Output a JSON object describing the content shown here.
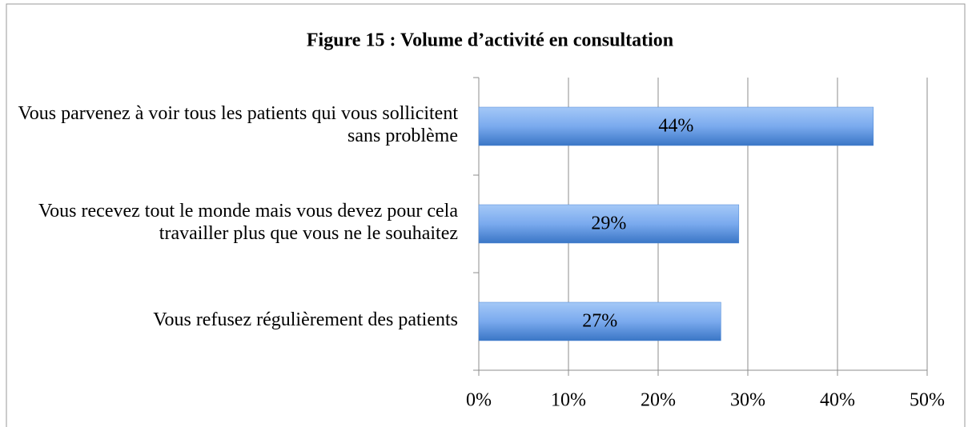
{
  "chart_data": {
    "type": "hbar",
    "title": "Figure 15 : Volume d’activité en consultation",
    "categories": [
      "Vous parvenez à voir tous les patients qui vous sollicitent sans problème",
      "Vous recevez tout le monde mais vous devez pour cela travailler plus que vous ne le souhaitez",
      "Vous refusez régulièrement des patients"
    ],
    "values": [
      44,
      29,
      27
    ],
    "value_labels": [
      "44%",
      "29%",
      "27%"
    ],
    "color": "#4a86d4",
    "xlim": [
      0,
      50
    ],
    "xticks": [
      {
        "value": 0,
        "label": "0%"
      },
      {
        "value": 10,
        "label": "10%"
      },
      {
        "value": 20,
        "label": "20%"
      },
      {
        "value": 30,
        "label": "30%"
      },
      {
        "value": 40,
        "label": "40%"
      },
      {
        "value": 50,
        "label": "50%"
      }
    ],
    "grid": true
  }
}
